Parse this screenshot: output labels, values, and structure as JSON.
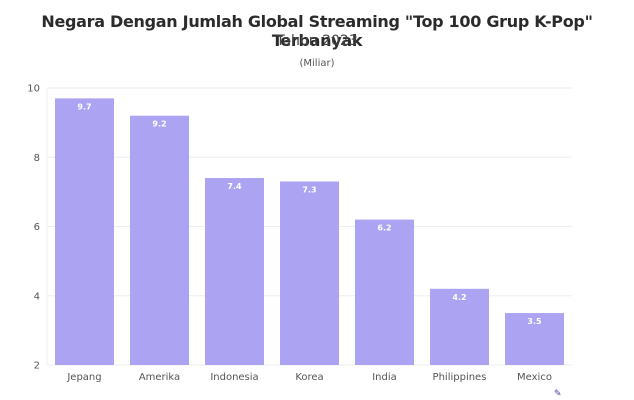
{
  "chart_data": {
    "type": "bar",
    "title": "Negara Dengan Jumlah Global Streaming \"Top 100 Grup K-Pop\" Terbanyak",
    "subtitle": "Tahun 2023",
    "unit_label": "(Miliar)",
    "xlabel": "",
    "ylabel": "",
    "categories": [
      "Jepang",
      "Amerika",
      "Indonesia",
      "Korea",
      "India",
      "Philippines",
      "Mexico"
    ],
    "values": [
      9.7,
      9.2,
      7.4,
      7.3,
      6.2,
      4.2,
      3.5
    ],
    "data_labels": [
      "9.7",
      "9.2",
      "7.4",
      "7.3",
      "6.2",
      "4.2",
      "3.5"
    ],
    "ylim": [
      2,
      10
    ],
    "yticks": [
      2,
      4,
      6,
      8,
      10
    ],
    "ytick_labels": [
      "2",
      "4",
      "6",
      "8",
      "10"
    ],
    "grid": true,
    "legend": "none",
    "bar_color": "#ada3f3"
  },
  "footer_icon": "pencil-icon"
}
